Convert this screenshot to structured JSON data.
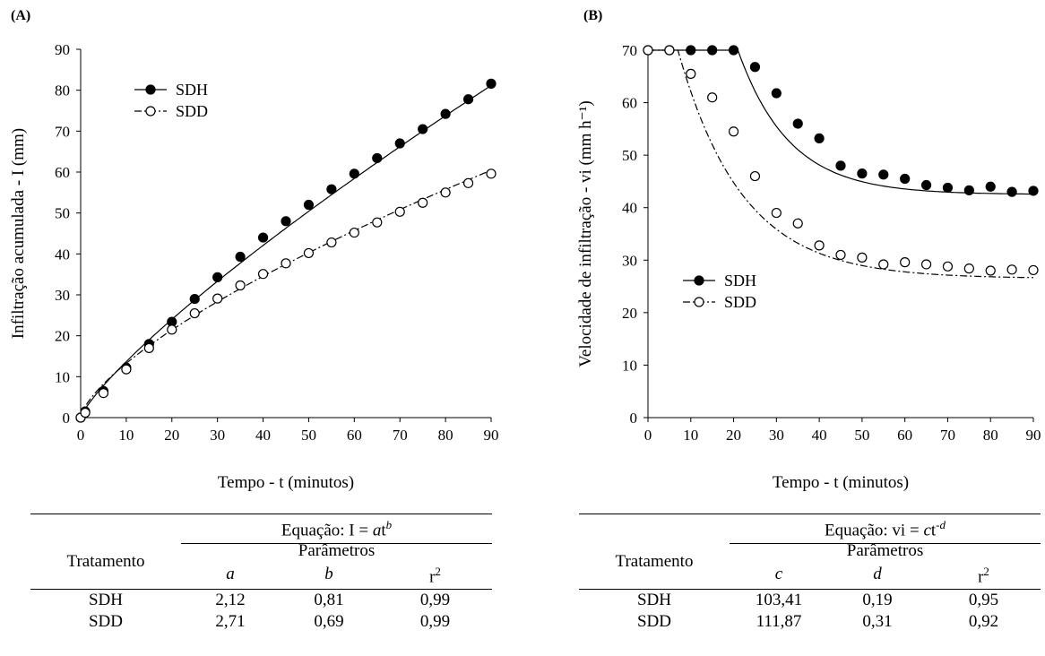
{
  "chart_data": [
    {
      "type": "scatter",
      "panel_label": "(A)",
      "xlabel": "Tempo - t (minutos)",
      "ylabel": "Infiltração acumulada - I (mm)",
      "xlim": [
        0,
        90
      ],
      "ylim": [
        0,
        90
      ],
      "xticks": [
        "0",
        "10",
        "20",
        "30",
        "40",
        "50",
        "60",
        "70",
        "80",
        "90"
      ],
      "yticks": [
        "0",
        "10",
        "20",
        "30",
        "40",
        "50",
        "60",
        "70",
        "80",
        "90"
      ],
      "legend_position": "top-left",
      "grid": false,
      "series": [
        {
          "name": "SDH",
          "marker": "filled-circle",
          "x": [
            0,
            1,
            5,
            10,
            15,
            20,
            25,
            30,
            35,
            40,
            45,
            50,
            55,
            60,
            65,
            70,
            75,
            80,
            85,
            90
          ],
          "y": [
            0,
            1.5,
            6.5,
            12.2,
            18,
            23.4,
            29,
            34.3,
            39.3,
            44,
            48,
            52,
            55.8,
            59.6,
            63.4,
            67,
            70.5,
            74.2,
            77.8,
            81.6
          ],
          "fit": {
            "type": "power",
            "a": 2.12,
            "b": 0.81,
            "line": "solid"
          }
        },
        {
          "name": "SDD",
          "marker": "open-circle",
          "x": [
            0,
            1,
            5,
            10,
            15,
            20,
            25,
            30,
            35,
            40,
            45,
            50,
            55,
            60,
            65,
            70,
            75,
            80,
            85,
            90
          ],
          "y": [
            0,
            1.2,
            6,
            11.8,
            17,
            21.5,
            25.5,
            29.1,
            32.3,
            35.1,
            37.7,
            40.2,
            42.8,
            45.2,
            47.7,
            50.3,
            52.5,
            55,
            57.3,
            59.6
          ],
          "fit": {
            "type": "power",
            "a": 2.71,
            "b": 0.69,
            "line": "dash-dot"
          }
        }
      ]
    },
    {
      "type": "scatter",
      "panel_label": "(B)",
      "xlabel": "Tempo - t (minutos)",
      "ylabel": "Velocidade de infiltração - vi (mm h⁻¹)",
      "xlim": [
        0,
        90
      ],
      "ylim": [
        0,
        70
      ],
      "xticks": [
        "0",
        "10",
        "20",
        "30",
        "40",
        "50",
        "60",
        "70",
        "80",
        "90"
      ],
      "yticks": [
        "0",
        "10",
        "20",
        "30",
        "40",
        "50",
        "60",
        "70"
      ],
      "legend_position": "center-left",
      "grid": false,
      "series": [
        {
          "name": "SDH",
          "marker": "filled-circle",
          "x": [
            0,
            5,
            10,
            15,
            20,
            25,
            30,
            35,
            40,
            45,
            50,
            55,
            60,
            65,
            70,
            75,
            80,
            85,
            90
          ],
          "y": [
            70,
            70,
            70,
            70,
            70,
            66.8,
            61.8,
            56,
            53.2,
            48,
            46.5,
            46.3,
            45.5,
            44.3,
            43.8,
            43.3,
            44,
            43,
            43.2
          ],
          "fit": {
            "line": "solid"
          }
        },
        {
          "name": "SDD",
          "marker": "open-circle",
          "x": [
            0,
            5,
            10,
            15,
            20,
            25,
            30,
            35,
            40,
            45,
            50,
            55,
            60,
            65,
            70,
            75,
            80,
            85,
            90
          ],
          "y": [
            70,
            70,
            65.5,
            61,
            54.5,
            46,
            39,
            37,
            32.8,
            31,
            30.5,
            29.2,
            29.6,
            29.2,
            28.8,
            28.4,
            28,
            28.2,
            28.1
          ],
          "fit": {
            "line": "dash-dot"
          }
        }
      ]
    }
  ],
  "tables": {
    "left": {
      "equation_prefix": "Equação: I = ",
      "equation_var": "a",
      "equation_base": "t",
      "equation_exp": "b",
      "header_col": "Tratamento",
      "params_label": "Parâmetros",
      "columns": [
        "a",
        "b",
        "r"
      ],
      "r_sup": "2",
      "rows": [
        {
          "trat": "SDH",
          "v1": "2,12",
          "v2": "0,81",
          "v3": "0,99"
        },
        {
          "trat": "SDD",
          "v1": "2,71",
          "v2": "0,69",
          "v3": "0,99"
        }
      ]
    },
    "right": {
      "equation_prefix": "Equação: vi = ",
      "equation_var": "c",
      "equation_base": "t",
      "equation_exp": "-d",
      "header_col": "Tratamento",
      "params_label": "Parâmetros",
      "columns": [
        "c",
        "d",
        "r"
      ],
      "r_sup": "2",
      "rows": [
        {
          "trat": "SDH",
          "v1": "103,41",
          "v2": "0,19",
          "v3": "0,95"
        },
        {
          "trat": "SDD",
          "v1": "111,87",
          "v2": "0,31",
          "v3": "0,92"
        }
      ]
    }
  }
}
